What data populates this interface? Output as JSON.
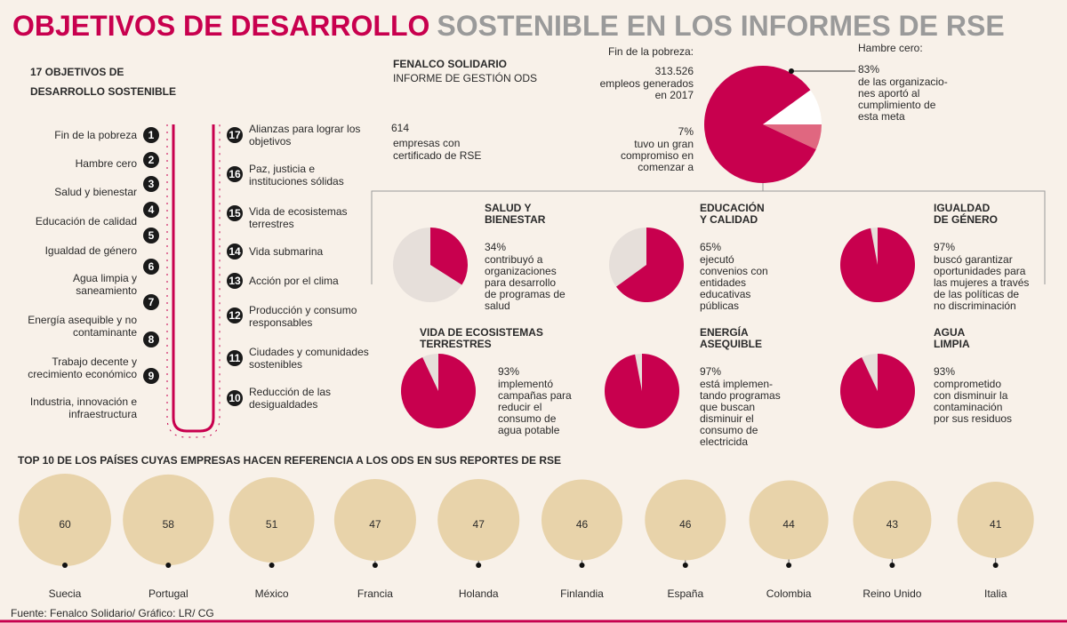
{
  "header": {
    "title_main": "OBJETIVOS DE DESARROLLO",
    "title_rest": "SOSTENIBLE EN  LOS INFORMES DE RSE"
  },
  "goals": {
    "title": [
      "17 OBJETIVOS DE",
      "DESARROLLO SOSTENIBLE"
    ],
    "items": [
      {
        "number": 1,
        "label": [
          "Fin de la pobreza"
        ]
      },
      {
        "number": 2,
        "label": [
          "Hambre cero"
        ]
      },
      {
        "number": 3,
        "label": [
          "Salud y bienestar"
        ]
      },
      {
        "number": 4,
        "label": [
          "Educación de calidad"
        ]
      },
      {
        "number": 5,
        "label": [
          "Igualdad de género"
        ]
      },
      {
        "number": 6,
        "label": [
          "Agua limpia y",
          "saneamiento"
        ]
      },
      {
        "number": 7,
        "label": [
          "Energía asequible y no",
          "contaminante"
        ]
      },
      {
        "number": 8,
        "label": [
          "Trabajo decente y",
          "crecimiento económico"
        ]
      },
      {
        "number": 9,
        "label": [
          "Industria, innovación e",
          "infraestructura"
        ]
      },
      {
        "number": 10,
        "label": [
          "Reducción de las",
          "desigualdades"
        ]
      },
      {
        "number": 11,
        "label": [
          "Ciudades y comunidades",
          "sostenibles"
        ]
      },
      {
        "number": 12,
        "label": [
          "Producción y consumo",
          "responsables"
        ]
      },
      {
        "number": 13,
        "label": [
          "Acción por el clima"
        ]
      },
      {
        "number": 14,
        "label": [
          "Vida submarina"
        ]
      },
      {
        "number": 15,
        "label": [
          "Vida de ecosistemas",
          "terrestres"
        ]
      },
      {
        "number": 16,
        "label": [
          "Paz, justicia e",
          "instituciones sólidas"
        ]
      },
      {
        "number": 17,
        "label": [
          "Alianzas para lograr los",
          "objetivos"
        ]
      }
    ]
  },
  "fenalco": {
    "org": "FENALCO SOLIDARIO",
    "report": "INFORME DE GESTIÓN ODS",
    "count": 614,
    "count_desc": [
      "empresas con",
      "certificado de RSE"
    ]
  },
  "featured": {
    "poverty": {
      "title": "Fin de la pobreza:",
      "jobs": "313.526",
      "jobs_desc": [
        "empleos generados",
        "en 2017"
      ],
      "value": {
        "value": 7,
        "label": "7%"
      },
      "desc": [
        "tuvo un gran",
        "compromiso en",
        "comenzar a"
      ]
    },
    "hunger": {
      "title": "Hambre cero:",
      "value": {
        "value": 83,
        "label": "83%"
      },
      "desc": [
        "de las organizacio-",
        "nes aportó al",
        "cumplimiento de",
        "esta meta"
      ]
    }
  },
  "pies": [
    {
      "title": [
        "SALUD Y",
        "BIENESTAR"
      ],
      "value": {
        "value": 34,
        "label": "34%"
      },
      "desc": [
        "contribuyó a",
        "organizaciones",
        "para desarrollo",
        "de programas de",
        "salud"
      ]
    },
    {
      "title": [
        "EDUCACIÓN",
        "Y CALIDAD"
      ],
      "value": {
        "value": 65,
        "label": "65%"
      },
      "desc": [
        "ejecutó",
        "convenios con",
        "entidades",
        "educativas",
        "públicas"
      ]
    },
    {
      "title": [
        "IGUALDAD",
        "DE GÉNERO"
      ],
      "value": {
        "value": 97,
        "label": "97%"
      },
      "desc": [
        "buscó garantizar",
        "oportunidades para",
        "las mujeres a través",
        "de las políticas de",
        "no discriminación"
      ]
    },
    {
      "title": [
        "VIDA DE ECOSISTEMAS",
        "TERRESTRES"
      ],
      "value": {
        "value": 93,
        "label": "93%"
      },
      "desc": [
        "implementó",
        "campañas para",
        "reducir el",
        "consumo de",
        "agua potable"
      ]
    },
    {
      "title": [
        "ENERGÍA",
        "ASEQUIBLE"
      ],
      "value": {
        "value": 97,
        "label": "97%"
      },
      "desc": [
        "está implemen-",
        "tando programas",
        "que buscan",
        "disminuir el",
        "consumo de",
        "electricida"
      ]
    },
    {
      "title": [
        "AGUA",
        "LIMPIA"
      ],
      "value": {
        "value": 93,
        "label": "93%"
      },
      "desc": [
        "comprometido",
        "con disminuir la",
        "contaminación",
        "por sus residuos"
      ]
    }
  ],
  "countries": {
    "title": "TOP 10 DE LOS PAÍSES CUYAS EMPRESAS HACEN REFERENCIA A LOS ODS EN SUS REPORTES DE RSE",
    "items": [
      {
        "name": "Suecia",
        "value": 60
      },
      {
        "name": "Portugal",
        "value": 58
      },
      {
        "name": "México",
        "value": 51
      },
      {
        "name": "Francia",
        "value": 47
      },
      {
        "name": "Holanda",
        "value": 47
      },
      {
        "name": "Finlandia",
        "value": 46
      },
      {
        "name": "España",
        "value": 46
      },
      {
        "name": "Colombia",
        "value": 44
      },
      {
        "name": "Reino Unido",
        "value": 43
      },
      {
        "name": "Italia",
        "value": 41
      }
    ]
  },
  "source": "Fuente: Fenalco Solidario/ Gráfico: LR/ CG"
}
